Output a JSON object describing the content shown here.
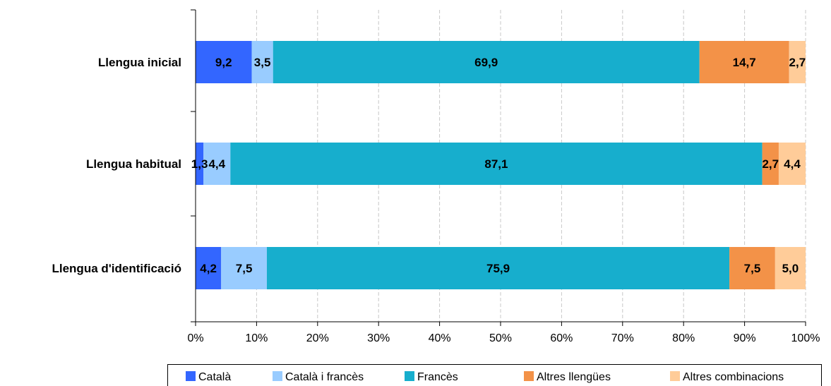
{
  "chart_data": {
    "type": "bar",
    "orientation": "horizontal",
    "stacked": "percent",
    "categories": [
      "Llengua inicial",
      "Llengua habitual",
      "Llengua d'identificació"
    ],
    "series": [
      {
        "name": "Català",
        "values": [
          9.2,
          1.3,
          4.2
        ],
        "labels": [
          "9,2",
          "1,3",
          "4,2"
        ],
        "color": "#3366ff"
      },
      {
        "name": "Català i francès",
        "values": [
          3.5,
          4.4,
          7.5
        ],
        "labels": [
          "3,5",
          "4,4",
          "7,5"
        ],
        "color": "#99ccff"
      },
      {
        "name": "Francès",
        "values": [
          69.9,
          87.1,
          75.9
        ],
        "labels": [
          "69,9",
          "87,1",
          "75,9"
        ],
        "color": "#17aecd"
      },
      {
        "name": "Altres llengües",
        "values": [
          14.7,
          2.7,
          7.5
        ],
        "labels": [
          "14,7",
          "2,7",
          "7,5"
        ],
        "color": "#f39248"
      },
      {
        "name": "Altres combinacions",
        "values": [
          2.7,
          4.4,
          5.0
        ],
        "labels": [
          "2,7",
          "4,4",
          "5,0"
        ],
        "color": "#ffcc99"
      }
    ],
    "xlim": [
      0,
      100
    ],
    "xticks": [
      "0%",
      "10%",
      "20%",
      "30%",
      "40%",
      "50%",
      "60%",
      "70%",
      "80%",
      "90%",
      "100%"
    ],
    "grid": "vertical dashed",
    "legend": "bottom",
    "title": "",
    "xlabel": "",
    "ylabel": ""
  }
}
